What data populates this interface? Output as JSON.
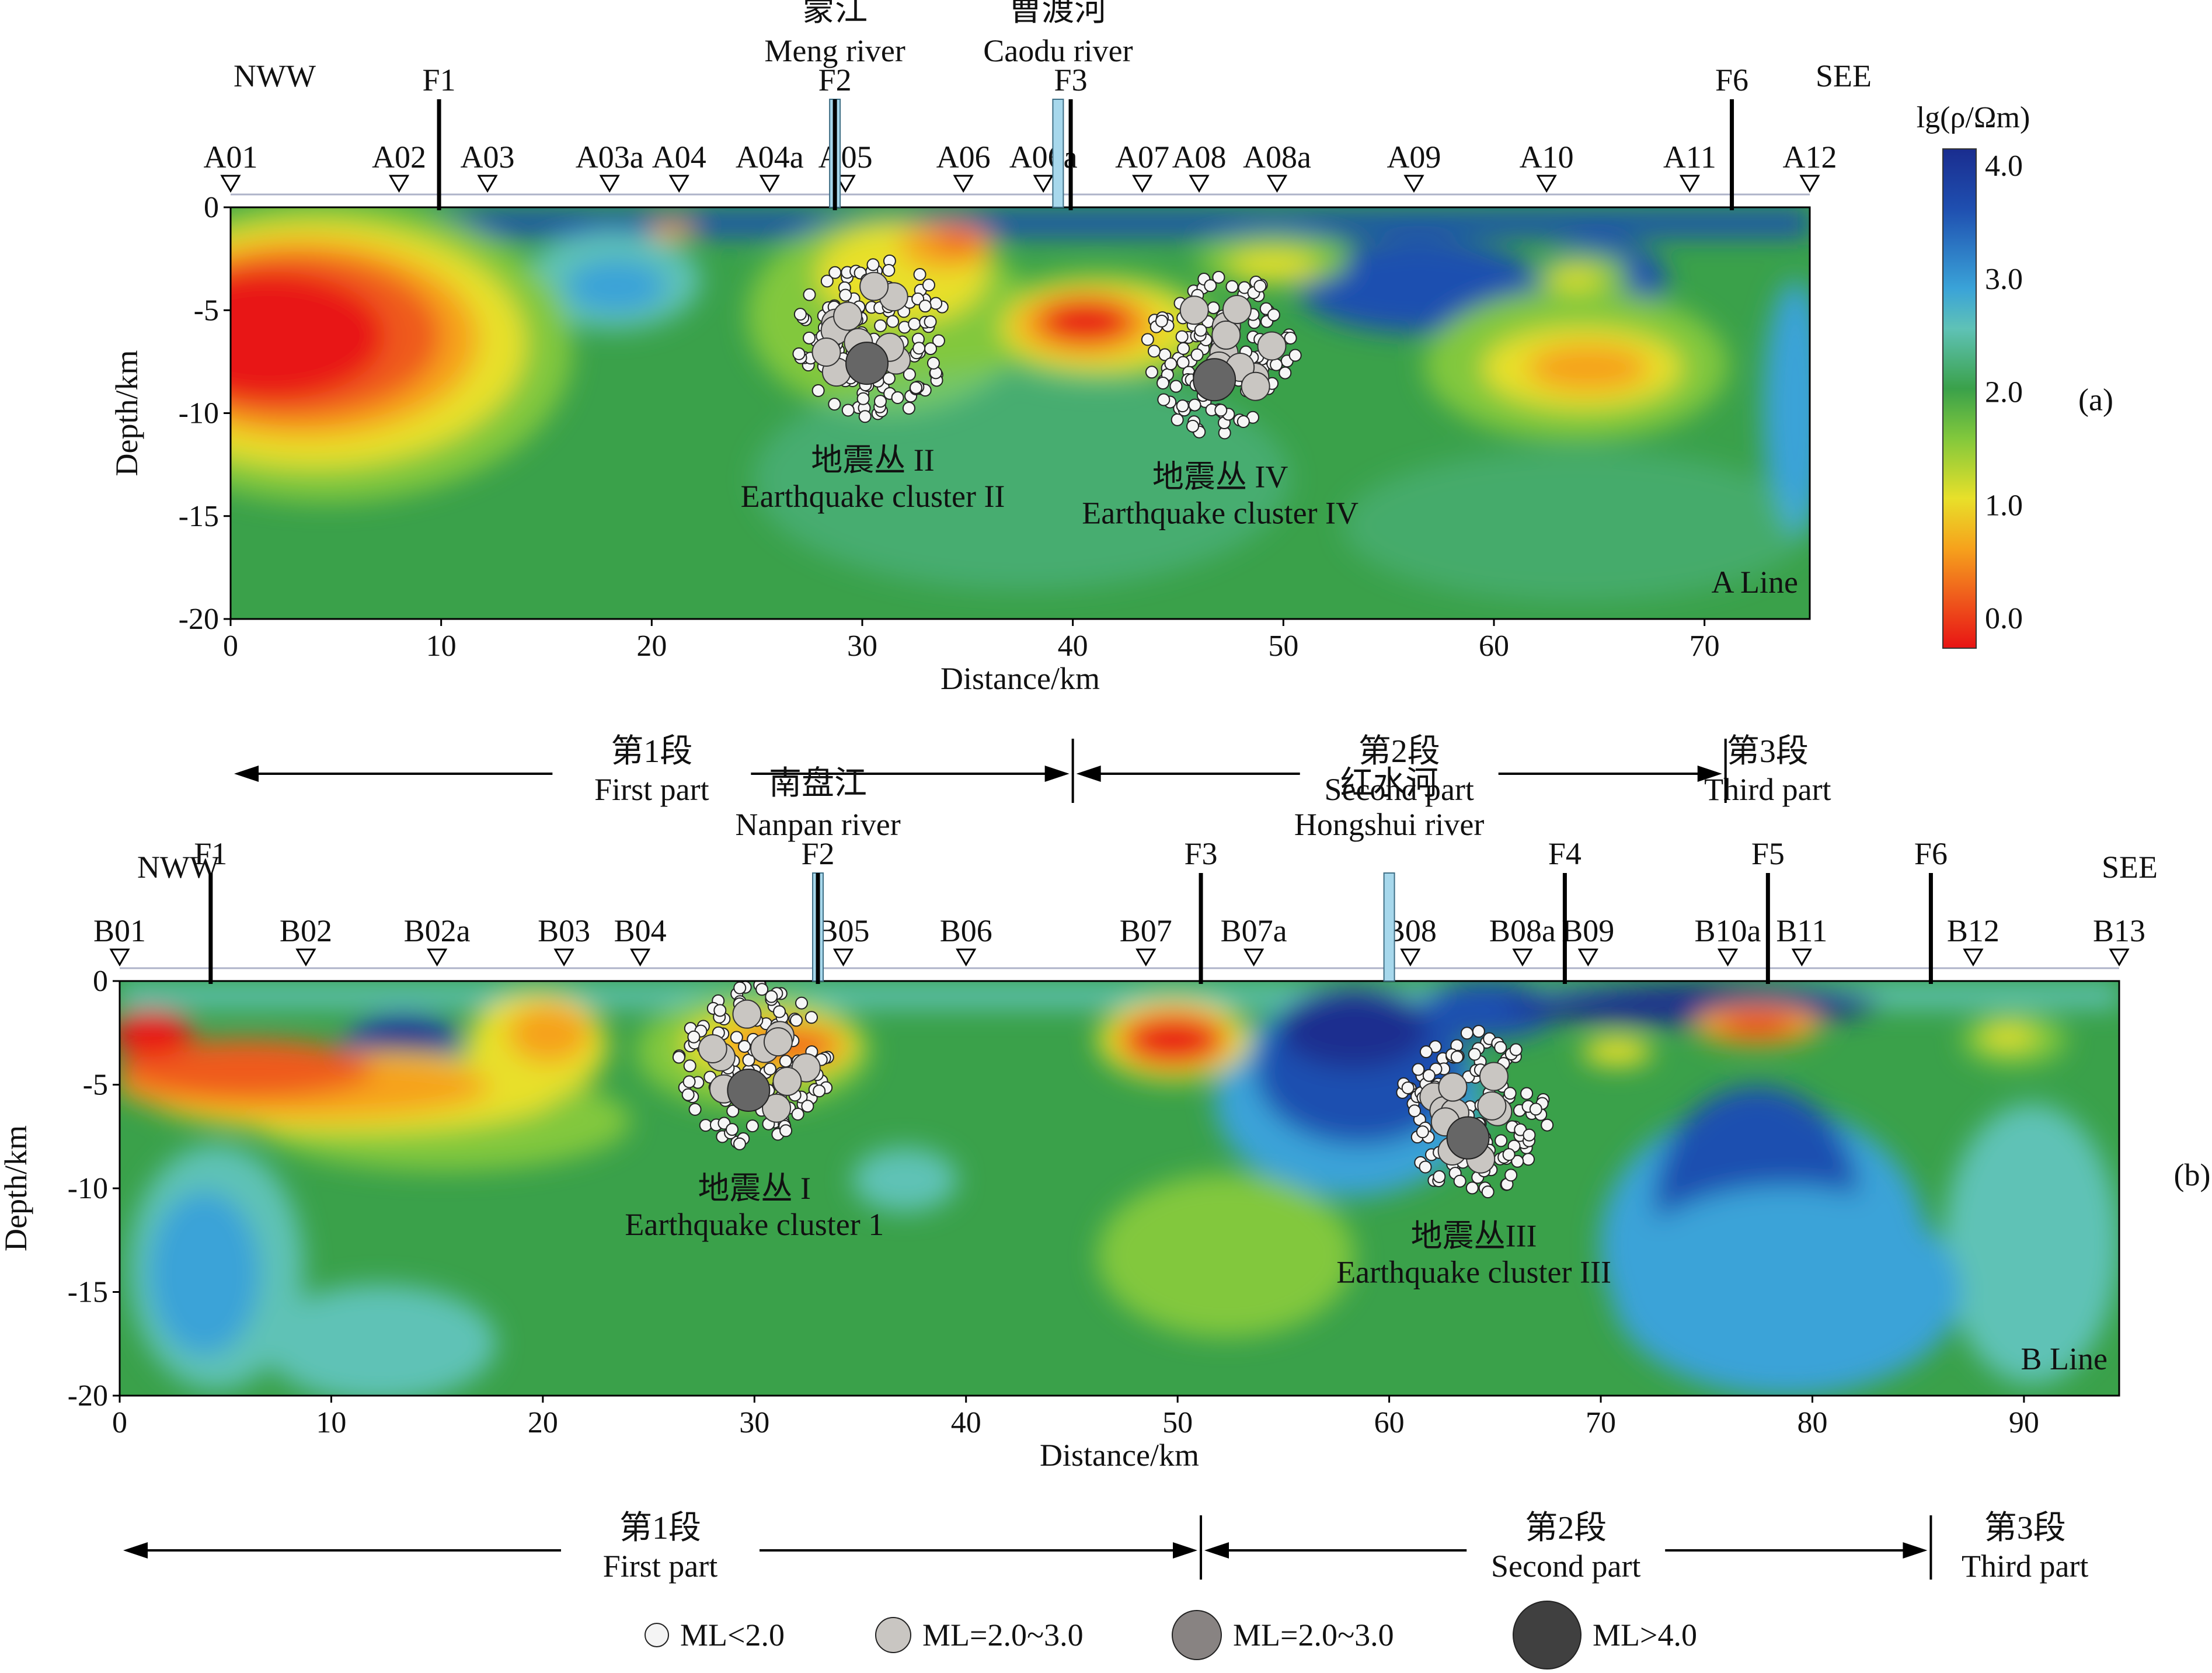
{
  "colorbar": {
    "title": "lg(ρ/Ωm)",
    "ticks": [
      "4.0",
      "3.0",
      "2.0",
      "1.0",
      "0.0"
    ],
    "stops": [
      "#1a2d8f",
      "#1f4fb0",
      "#3aa3d8",
      "#5fc2b6",
      "#3aa14a",
      "#82c83c",
      "#e8e02a",
      "#f6a21c",
      "#ef5a1c",
      "#e81414"
    ]
  },
  "legend": [
    {
      "label": "ML<2.0",
      "color": "#f4f4f4"
    },
    {
      "label": "ML=2.0~3.0",
      "color": "#c9c6c2"
    },
    {
      "label": "ML=2.0~3.0",
      "color": "#888382"
    },
    {
      "label": "ML>4.0",
      "color": "#404040"
    }
  ],
  "chart_data": [
    {
      "type": "heatmap",
      "panel_label": "(a)",
      "line_name": "A Line",
      "xlabel": "Distance/km",
      "ylabel": "Depth/km",
      "xlim": [
        0,
        75
      ],
      "ylim": [
        -20,
        0
      ],
      "xticks": [
        "0",
        "10",
        "20",
        "30",
        "40",
        "50",
        "60",
        "70"
      ],
      "yticks": [
        "0",
        "-5",
        "-10",
        "-15",
        "-20"
      ],
      "direction_left": "NWW",
      "direction_right": "SEE",
      "stations": [
        {
          "name": "A01",
          "x": 0
        },
        {
          "name": "A02",
          "x": 8
        },
        {
          "name": "A03",
          "x": 12.2
        },
        {
          "name": "A03a",
          "x": 18
        },
        {
          "name": "A04",
          "x": 21.3
        },
        {
          "name": "A04a",
          "x": 25.6
        },
        {
          "name": "A05",
          "x": 29.2
        },
        {
          "name": "A06",
          "x": 34.8
        },
        {
          "name": "A06a",
          "x": 38.6
        },
        {
          "name": "A07",
          "x": 43.3
        },
        {
          "name": "A08",
          "x": 46
        },
        {
          "name": "A08a",
          "x": 49.7
        },
        {
          "name": "A09",
          "x": 56.2
        },
        {
          "name": "A10",
          "x": 62.5
        },
        {
          "name": "A11",
          "x": 69.3
        },
        {
          "name": "A12",
          "x": 75
        }
      ],
      "faults": [
        {
          "name": "F1",
          "x": 9.9
        },
        {
          "name": "F2",
          "x": 28.7
        },
        {
          "name": "F3",
          "x": 39.9
        },
        {
          "name": "F6",
          "x": 71.3
        }
      ],
      "rivers": [
        {
          "name_cn": "蒙江",
          "name_en": "Meng river",
          "x": 28.7
        },
        {
          "name_cn": "曹渡河",
          "name_en": "Caodu river",
          "x": 39.3
        }
      ],
      "clusters": [
        {
          "name_cn": "地震丛 II",
          "name_en": "Earthquake cluster II",
          "x": 30.5,
          "depth": -12.8
        },
        {
          "name_cn": "地震丛 IV",
          "name_en": "Earthquake cluster IV",
          "x": 47,
          "depth": -13.6
        }
      ],
      "segments": [
        {
          "name_cn": "第1段",
          "name_en": "First part",
          "from": 0,
          "to": 40
        },
        {
          "name_cn": "第2段",
          "name_en": "Second part",
          "from": 40,
          "to": 71
        },
        {
          "name_cn": "第3段",
          "name_en": "Third part",
          "from": 71,
          "to": 75
        }
      ]
    },
    {
      "type": "heatmap",
      "panel_label": "(b)",
      "line_name": "B Line",
      "xlabel": "Distance/km",
      "ylabel": "Depth/km",
      "xlim": [
        0,
        94.5
      ],
      "ylim": [
        -20,
        0
      ],
      "xticks": [
        "0",
        "10",
        "20",
        "30",
        "40",
        "50",
        "60",
        "70",
        "80",
        "90"
      ],
      "yticks": [
        "0",
        "-5",
        "-10",
        "-15",
        "-20"
      ],
      "direction_left": "NWW",
      "direction_right": "SEE",
      "stations": [
        {
          "name": "B01",
          "x": 0
        },
        {
          "name": "B02",
          "x": 8.8
        },
        {
          "name": "B02a",
          "x": 15
        },
        {
          "name": "B03",
          "x": 21
        },
        {
          "name": "B04",
          "x": 24.6
        },
        {
          "name": "B05",
          "x": 34.2
        },
        {
          "name": "B06",
          "x": 40
        },
        {
          "name": "B07",
          "x": 48.5
        },
        {
          "name": "B07a",
          "x": 53.6
        },
        {
          "name": "B08",
          "x": 61
        },
        {
          "name": "B08a",
          "x": 66.3
        },
        {
          "name": "B09",
          "x": 69.4
        },
        {
          "name": "B10a",
          "x": 76
        },
        {
          "name": "B11",
          "x": 79.5
        },
        {
          "name": "B12",
          "x": 87.6
        },
        {
          "name": "B13",
          "x": 94.5
        }
      ],
      "faults": [
        {
          "name": "F1",
          "x": 4.3
        },
        {
          "name": "F2",
          "x": 33
        },
        {
          "name": "F3",
          "x": 51.1
        },
        {
          "name": "F4",
          "x": 68.3
        },
        {
          "name": "F5",
          "x": 77.9
        },
        {
          "name": "F6",
          "x": 85.6
        }
      ],
      "rivers": [
        {
          "name_cn": "南盘江",
          "name_en": "Nanpan river",
          "x": 33
        },
        {
          "name_cn": "红水河",
          "name_en": "Hongshui river",
          "x": 60
        }
      ],
      "clusters": [
        {
          "name_cn": "地震丛 I",
          "name_en": "Earthquake cluster 1",
          "x": 30,
          "depth": -10.5
        },
        {
          "name_cn": "地震丛III",
          "name_en": "Earthquake cluster III",
          "x": 64,
          "depth": -12.8
        }
      ],
      "segments": [
        {
          "name_cn": "第1段",
          "name_en": "First part",
          "from": 0,
          "to": 51.1
        },
        {
          "name_cn": "第2段",
          "name_en": "Second part",
          "from": 51.1,
          "to": 85.6
        },
        {
          "name_cn": "第3段",
          "name_en": "Third part",
          "from": 85.6,
          "to": 94.5
        }
      ]
    }
  ]
}
